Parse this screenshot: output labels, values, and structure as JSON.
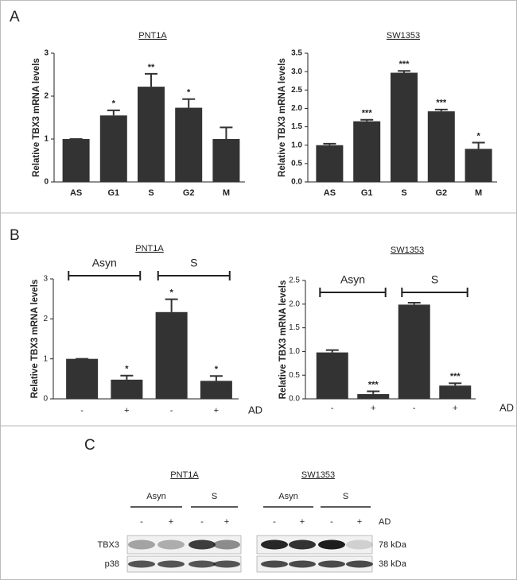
{
  "panel_labels": [
    "A",
    "B",
    "C"
  ],
  "chart_data": [
    {
      "type": "bar",
      "title": "PNT1A",
      "ylabel": "Relative TBX3 mRNA levels",
      "categories": [
        "AS",
        "G1",
        "S",
        "G2",
        "M"
      ],
      "values": [
        1.0,
        1.55,
        2.22,
        1.73,
        1.0
      ],
      "errors": [
        0,
        0.12,
        0.3,
        0.2,
        0.27
      ],
      "significance": [
        null,
        "*",
        "**",
        "*",
        null
      ],
      "color": "#333333",
      "ylim": [
        0,
        3
      ],
      "yticks": [
        0,
        1,
        2,
        3
      ]
    },
    {
      "type": "bar",
      "title": "SW1353",
      "ylabel": "Relative TBX3 mRNA levels",
      "categories": [
        "AS",
        "G1",
        "S",
        "G2",
        "M"
      ],
      "values": [
        1.0,
        1.65,
        2.97,
        1.92,
        0.9
      ],
      "errors": [
        0.04,
        0.04,
        0.05,
        0.05,
        0.17
      ],
      "significance": [
        null,
        "***",
        "***",
        "***",
        "*"
      ],
      "color": "#333333",
      "ylim": [
        0,
        3.5
      ],
      "yticks": [
        {
          "value": 0,
          "label": "0.0"
        },
        {
          "value": 0.5,
          "label": "0.5"
        },
        {
          "value": 1,
          "label": "1.0"
        },
        {
          "value": 1.5,
          "label": "1.5"
        },
        {
          "value": 2,
          "label": "2.0"
        },
        {
          "value": 2.5,
          "label": "2.5"
        },
        {
          "value": 3,
          "label": "3.0"
        },
        {
          "value": 3.5,
          "label": "3.5"
        }
      ]
    },
    {
      "type": "bar",
      "title": "PNT1A",
      "ylabel": "Relative TBX3 mRNA levels",
      "categories": [
        "-",
        "+",
        "-",
        "+"
      ],
      "groups": [
        "Asyn",
        "S"
      ],
      "x_label": "AD",
      "values": [
        1.0,
        0.48,
        2.17,
        0.45
      ],
      "errors": [
        0,
        0.1,
        0.32,
        0.12
      ],
      "significance": [
        null,
        "*",
        "*",
        "*"
      ],
      "color": "#333333",
      "ylim": [
        0,
        3
      ],
      "yticks": [
        0,
        1,
        2,
        3
      ]
    },
    {
      "type": "bar",
      "title": "SW1353",
      "ylabel": "Relative TBX3 mRNA levels",
      "categories": [
        "-",
        "+",
        "-",
        "+"
      ],
      "groups": [
        "Asyn",
        "S"
      ],
      "x_label": "AD",
      "values": [
        0.98,
        0.1,
        1.99,
        0.28
      ],
      "errors": [
        0.05,
        0.06,
        0.04,
        0.05
      ],
      "significance": [
        null,
        "***",
        null,
        "***"
      ],
      "color": "#333333",
      "ylim": [
        0,
        2.5
      ],
      "yticks": [
        {
          "value": 0,
          "label": "0.0"
        },
        {
          "value": 0.5,
          "label": "0.5"
        },
        {
          "value": 1,
          "label": "1.0"
        },
        {
          "value": 1.5,
          "label": "1.5"
        },
        {
          "value": 2,
          "label": "2.0"
        },
        {
          "value": 2.5,
          "label": "2.5"
        }
      ]
    }
  ],
  "blot": {
    "cell_lines": [
      "PNT1A",
      "SW1353"
    ],
    "groups": [
      "Asyn",
      "S"
    ],
    "lanes": [
      "-",
      "+",
      "-",
      "+"
    ],
    "treatment": "AD",
    "rows": [
      {
        "label": "TBX3",
        "size": "78 kDa"
      },
      {
        "label": "p38",
        "size": "38 kDa"
      }
    ]
  }
}
